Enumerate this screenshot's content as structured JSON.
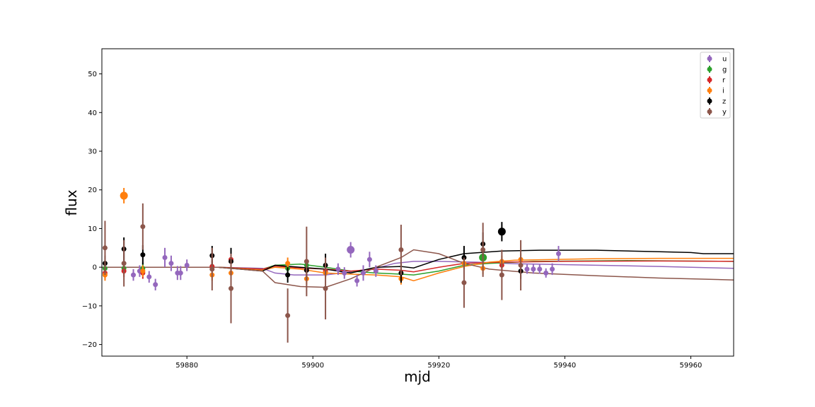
{
  "chart_data": {
    "type": "scatter",
    "title": "",
    "xlabel": "mjd",
    "ylabel": "flux",
    "xlim": [
      59866.5,
      59966.8
    ],
    "ylim": [
      -23.0,
      56.5
    ],
    "xticks": [
      59880,
      59900,
      59920,
      59940,
      59960
    ],
    "yticks": [
      -20,
      -10,
      0,
      10,
      20,
      30,
      40,
      50
    ],
    "grid": false,
    "legend_position": "top-right",
    "series": [
      {
        "name": "u",
        "color": "#9467bd",
        "points": [
          {
            "x": 59871.5,
            "y": -2.0,
            "err": 1.5
          },
          {
            "x": 59872.5,
            "y": -1.0,
            "err": 1.5
          },
          {
            "x": 59874.0,
            "y": -2.5,
            "err": 1.5
          },
          {
            "x": 59875.0,
            "y": -4.5,
            "err": 1.5
          },
          {
            "x": 59876.5,
            "y": 2.5,
            "err": 2.5
          },
          {
            "x": 59877.5,
            "y": 1.0,
            "err": 2.0
          },
          {
            "x": 59878.5,
            "y": -1.5,
            "err": 1.8
          },
          {
            "x": 59879.0,
            "y": -1.5,
            "err": 1.8
          },
          {
            "x": 59880.0,
            "y": 0.5,
            "err": 1.5
          },
          {
            "x": 59904.0,
            "y": -0.5,
            "err": 1.5
          },
          {
            "x": 59905.0,
            "y": -1.5,
            "err": 1.5
          },
          {
            "x": 59906.0,
            "y": 4.5,
            "err": 2.0,
            "big": true
          },
          {
            "x": 59907.0,
            "y": -3.5,
            "err": 1.5
          },
          {
            "x": 59908.0,
            "y": -1.5,
            "err": 2.0
          },
          {
            "x": 59909.0,
            "y": 2.0,
            "err": 2.0
          },
          {
            "x": 59910.0,
            "y": -1.0,
            "err": 1.5
          },
          {
            "x": 59934.0,
            "y": -0.5,
            "err": 1.2
          },
          {
            "x": 59935.0,
            "y": -0.5,
            "err": 1.2
          },
          {
            "x": 59936.0,
            "y": -0.5,
            "err": 1.2
          },
          {
            "x": 59937.0,
            "y": -1.5,
            "err": 1.2
          },
          {
            "x": 59938.0,
            "y": -0.5,
            "err": 1.5
          },
          {
            "x": 59939.0,
            "y": 3.5,
            "err": 2.0
          }
        ],
        "model": [
          [
            59866.5,
            0
          ],
          [
            59885,
            0
          ],
          [
            59892,
            -0.3
          ],
          [
            59894,
            -1.5
          ],
          [
            59897,
            -2.0
          ],
          [
            59902,
            -2.0
          ],
          [
            59906,
            -1.2
          ],
          [
            59910,
            -0.3
          ],
          [
            59913,
            1.0
          ],
          [
            59916,
            1.5
          ],
          [
            59920,
            1.5
          ],
          [
            59926,
            1.3
          ],
          [
            59932,
            0.9
          ],
          [
            59945,
            0.5
          ],
          [
            59955,
            0.2
          ],
          [
            59966.8,
            -0.3
          ]
        ]
      },
      {
        "name": "g",
        "color": "#2ca02c",
        "points": [
          {
            "x": 59867.0,
            "y": -0.3,
            "err": 1.5
          },
          {
            "x": 59870.0,
            "y": -0.3,
            "err": 1.5
          },
          {
            "x": 59873.0,
            "y": -0.3,
            "err": 1.5
          },
          {
            "x": 59896.0,
            "y": -0.3,
            "err": 1.5
          },
          {
            "x": 59899.0,
            "y": 0.5,
            "err": 1.5
          },
          {
            "x": 59927.0,
            "y": 2.5,
            "err": 3.0,
            "big": true
          }
        ],
        "model": [
          [
            59866.5,
            0
          ],
          [
            59885,
            0
          ],
          [
            59892,
            -0.5
          ],
          [
            59894,
            0.5
          ],
          [
            59898,
            0.8
          ],
          [
            59902,
            0
          ],
          [
            59906,
            -1.0
          ],
          [
            59910,
            -1.5
          ],
          [
            59914,
            -1.8
          ],
          [
            59916,
            -2.0
          ],
          [
            59920,
            -1.0
          ],
          [
            59924,
            0.5
          ],
          [
            59928,
            1.0
          ],
          [
            59935,
            1.5
          ],
          [
            59950,
            1.7
          ],
          [
            59966.8,
            1.5
          ]
        ]
      },
      {
        "name": "r",
        "color": "#d62728",
        "points": [
          {
            "x": 59867.0,
            "y": -1.5,
            "err": 1.5
          },
          {
            "x": 59870.0,
            "y": -1.0,
            "err": 1.5
          },
          {
            "x": 59873.0,
            "y": -1.5,
            "err": 1.5
          },
          {
            "x": 59884.0,
            "y": 0.2,
            "err": 1.5
          },
          {
            "x": 59887.0,
            "y": 2.0,
            "err": 1.5
          },
          {
            "x": 59902.0,
            "y": -1.0,
            "err": 1.5
          },
          {
            "x": 59930.0,
            "y": 0.5,
            "err": 1.5
          }
        ],
        "model": [
          [
            59866.5,
            0
          ],
          [
            59885,
            0
          ],
          [
            59892,
            -0.5
          ],
          [
            59894,
            0.3
          ],
          [
            59898,
            -0.2
          ],
          [
            59902,
            -0.5
          ],
          [
            59906,
            -1.0
          ],
          [
            59910,
            -0.5
          ],
          [
            59914,
            -0.8
          ],
          [
            59916,
            -1.2
          ],
          [
            59920,
            0
          ],
          [
            59924,
            1.0
          ],
          [
            59930,
            1.3
          ],
          [
            59940,
            1.5
          ],
          [
            59955,
            1.6
          ],
          [
            59966.8,
            1.5
          ]
        ]
      },
      {
        "name": "i",
        "color": "#ff7f0e",
        "points": [
          {
            "x": 59867.0,
            "y": -2.0,
            "err": 1.5
          },
          {
            "x": 59870.0,
            "y": 18.5,
            "err": 2.0,
            "big": true
          },
          {
            "x": 59873.0,
            "y": -1.0,
            "err": 1.5
          },
          {
            "x": 59884.0,
            "y": -2.0,
            "err": 1.5
          },
          {
            "x": 59887.0,
            "y": -1.5,
            "err": 1.5
          },
          {
            "x": 59896.0,
            "y": 1.0,
            "err": 1.5
          },
          {
            "x": 59899.0,
            "y": -3.0,
            "err": 1.5
          },
          {
            "x": 59902.0,
            "y": -1.5,
            "err": 1.5
          },
          {
            "x": 59914.0,
            "y": -3.0,
            "err": 1.5
          },
          {
            "x": 59924.0,
            "y": 1.0,
            "err": 1.5
          },
          {
            "x": 59927.0,
            "y": -0.3,
            "err": 1.5
          },
          {
            "x": 59930.0,
            "y": 1.5,
            "err": 1.5
          },
          {
            "x": 59933.0,
            "y": 2.0,
            "err": 1.5
          }
        ],
        "model": [
          [
            59866.5,
            0
          ],
          [
            59885,
            0
          ],
          [
            59892,
            -0.8
          ],
          [
            59894,
            0
          ],
          [
            59898,
            -0.5
          ],
          [
            59902,
            -1.5
          ],
          [
            59906,
            -1.8
          ],
          [
            59910,
            -2.0
          ],
          [
            59914,
            -2.5
          ],
          [
            59916,
            -3.5
          ],
          [
            59920,
            -1.5
          ],
          [
            59924,
            0.2
          ],
          [
            59928,
            1.3
          ],
          [
            59932,
            1.8
          ],
          [
            59945,
            2.2
          ],
          [
            59955,
            2.3
          ],
          [
            59966.8,
            2.3
          ]
        ]
      },
      {
        "name": "z",
        "color": "#000000",
        "points": [
          {
            "x": 59867.0,
            "y": 1.0,
            "err": 2.0
          },
          {
            "x": 59870.0,
            "y": 4.7,
            "err": 3.0
          },
          {
            "x": 59873.0,
            "y": 3.2,
            "err": 2.5
          },
          {
            "x": 59884.0,
            "y": 3.0,
            "err": 2.5
          },
          {
            "x": 59887.0,
            "y": 1.5,
            "err": 3.5
          },
          {
            "x": 59896.0,
            "y": -2.0,
            "err": 2.0
          },
          {
            "x": 59899.0,
            "y": -0.8,
            "err": 2.5
          },
          {
            "x": 59902.0,
            "y": 0.5,
            "err": 3.0
          },
          {
            "x": 59914.0,
            "y": -1.5,
            "err": 2.5
          },
          {
            "x": 59924.0,
            "y": 2.5,
            "err": 3.0
          },
          {
            "x": 59927.0,
            "y": 6.0,
            "err": 3.0
          },
          {
            "x": 59930.0,
            "y": 9.2,
            "err": 2.5,
            "big": true
          },
          {
            "x": 59933.0,
            "y": -1.0,
            "err": 2.0
          }
        ],
        "model": [
          [
            59866.5,
            0
          ],
          [
            59885,
            0
          ],
          [
            59892,
            -1.0
          ],
          [
            59894,
            0.5
          ],
          [
            59898,
            0
          ],
          [
            59902,
            -0.5
          ],
          [
            59906,
            -1.5
          ],
          [
            59910,
            0
          ],
          [
            59914,
            0.2
          ],
          [
            59916,
            -0.2
          ],
          [
            59920,
            2.0
          ],
          [
            59924,
            3.5
          ],
          [
            59930,
            4.2
          ],
          [
            59936,
            4.4
          ],
          [
            59945,
            4.4
          ],
          [
            59955,
            4.0
          ],
          [
            59960,
            3.8
          ],
          [
            59962,
            3.5
          ],
          [
            59966.8,
            3.5
          ]
        ]
      },
      {
        "name": "y",
        "color": "#8c564b",
        "points": [
          {
            "x": 59867.0,
            "y": 5.0,
            "err": 7.0
          },
          {
            "x": 59870.0,
            "y": 1.0,
            "err": 6.0
          },
          {
            "x": 59873.0,
            "y": 10.5,
            "err": 6.0
          },
          {
            "x": 59884.0,
            "y": -0.5,
            "err": 5.5
          },
          {
            "x": 59887.0,
            "y": -5.5,
            "err": 9.0
          },
          {
            "x": 59896.0,
            "y": -12.5,
            "err": 7.0
          },
          {
            "x": 59899.0,
            "y": 1.5,
            "err": 9.0
          },
          {
            "x": 59902.0,
            "y": -5.5,
            "err": 8.0
          },
          {
            "x": 59914.0,
            "y": 4.5,
            "err": 6.5
          },
          {
            "x": 59924.0,
            "y": -4.0,
            "err": 6.5
          },
          {
            "x": 59927.0,
            "y": 4.5,
            "err": 7.0
          },
          {
            "x": 59930.0,
            "y": -2.0,
            "err": 6.5
          },
          {
            "x": 59933.0,
            "y": 0.5,
            "err": 6.5
          }
        ],
        "model": [
          [
            59866.5,
            0
          ],
          [
            59885,
            0
          ],
          [
            59892,
            -1.0
          ],
          [
            59894,
            -4.0
          ],
          [
            59898,
            -5.0
          ],
          [
            59902,
            -5.2
          ],
          [
            59906,
            -3.0
          ],
          [
            59910,
            0
          ],
          [
            59914,
            2.5
          ],
          [
            59916,
            4.5
          ],
          [
            59920,
            3.5
          ],
          [
            59924,
            1.0
          ],
          [
            59928,
            -0.5
          ],
          [
            59935,
            -1.5
          ],
          [
            59945,
            -2.2
          ],
          [
            59955,
            -2.8
          ],
          [
            59966.8,
            -3.3
          ]
        ]
      }
    ]
  }
}
